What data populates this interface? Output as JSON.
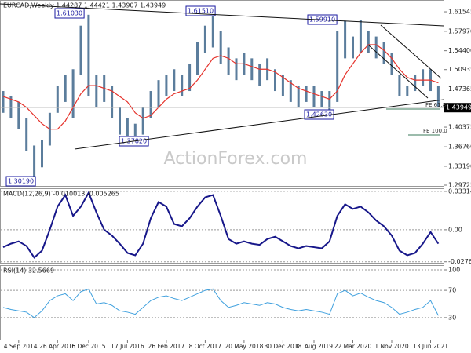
{
  "chart_data": [
    {
      "type": "ohlc",
      "title": "EURCAD,Weekly  1.44287 1.44421 1.43907 1.43949",
      "high": [
        1.47,
        1.46,
        1.45,
        1.42,
        1.37,
        1.38,
        1.43,
        1.48,
        1.5,
        1.51,
        1.59,
        1.61,
        1.5,
        1.5,
        1.48,
        1.44,
        1.42,
        1.41,
        1.44,
        1.47,
        1.49,
        1.5,
        1.51,
        1.5,
        1.52,
        1.56,
        1.59,
        1.6151,
        1.58,
        1.55,
        1.53,
        1.54,
        1.53,
        1.52,
        1.53,
        1.51,
        1.5,
        1.49,
        1.48,
        1.48,
        1.48,
        1.47,
        1.47,
        1.58,
        1.5991,
        1.57,
        1.6,
        1.58,
        1.57,
        1.56,
        1.54,
        1.5,
        1.48,
        1.5,
        1.51,
        1.51,
        1.48
      ],
      "low": [
        1.43,
        1.42,
        1.4,
        1.36,
        1.3019,
        1.33,
        1.37,
        1.43,
        1.45,
        1.42,
        1.5,
        1.46,
        1.44,
        1.45,
        1.42,
        1.39,
        1.38,
        1.3782,
        1.39,
        1.42,
        1.44,
        1.46,
        1.47,
        1.46,
        1.47,
        1.5,
        1.54,
        1.55,
        1.52,
        1.5,
        1.49,
        1.5,
        1.49,
        1.48,
        1.49,
        1.47,
        1.46,
        1.45,
        1.44,
        1.45,
        1.44,
        1.44,
        1.4263,
        1.45,
        1.53,
        1.53,
        1.54,
        1.54,
        1.53,
        1.52,
        1.5,
        1.46,
        1.46,
        1.47,
        1.48,
        1.47,
        1.43949
      ],
      "moving_average": [
        1.46,
        1.455,
        1.45,
        1.44,
        1.425,
        1.41,
        1.4,
        1.4,
        1.415,
        1.44,
        1.465,
        1.48,
        1.48,
        1.475,
        1.47,
        1.46,
        1.45,
        1.43,
        1.42,
        1.425,
        1.44,
        1.455,
        1.465,
        1.47,
        1.475,
        1.49,
        1.51,
        1.53,
        1.535,
        1.53,
        1.52,
        1.52,
        1.515,
        1.51,
        1.51,
        1.505,
        1.495,
        1.485,
        1.475,
        1.47,
        1.465,
        1.46,
        1.455,
        1.47,
        1.5,
        1.52,
        1.54,
        1.555,
        1.555,
        1.545,
        1.53,
        1.51,
        1.495,
        1.49,
        1.49,
        1.49,
        1.485
      ],
      "bar_color": "#5b7d9c",
      "ma_color": "#e5322b",
      "ylim": [
        1.2958,
        1.6371
      ],
      "yticks": [
        1.61545,
        {
          "value": 1.5797,
          "label": "1.57970"
        },
        {
          "value": 1.544,
          "label": "1.54400"
        },
        1.50935,
        1.47365,
        1.40375,
        {
          "value": 1.3676,
          "label": "1.36760"
        },
        {
          "value": 1.3319,
          "label": "1.33190"
        },
        1.29725
      ],
      "last_price": 1.43949,
      "annotations": [
        "1.61030",
        "1.61510",
        "1.59910",
        "1.30190",
        "1.37820",
        "1.42630",
        "FE 61.8",
        "FE 100.0"
      ],
      "watermark": "ActionForex.com"
    },
    {
      "type": "line",
      "title": "MACD(12,26,9) -0.010013 -0.005265",
      "values": [
        -0.015,
        -0.012,
        -0.01,
        -0.014,
        -0.024,
        -0.018,
        0.0,
        0.02,
        0.03,
        0.012,
        0.02,
        0.032,
        0.015,
        0.0,
        -0.005,
        -0.012,
        -0.02,
        -0.022,
        -0.012,
        0.01,
        0.024,
        0.02,
        0.005,
        0.003,
        0.01,
        0.02,
        0.028,
        0.03,
        0.012,
        -0.008,
        -0.012,
        -0.01,
        -0.012,
        -0.013,
        -0.008,
        -0.006,
        -0.01,
        -0.014,
        -0.016,
        -0.014,
        -0.015,
        -0.016,
        -0.01,
        0.012,
        0.022,
        0.018,
        0.02,
        0.015,
        0.008,
        0.003,
        -0.005,
        -0.018,
        -0.022,
        -0.02,
        -0.012,
        -0.002,
        -0.012
      ],
      "color": "#17178a",
      "ylim": [
        -0.0285,
        0.0358
      ],
      "yticks": [
        0.033145,
        {
          "value": 0,
          "label": "0.00"
        },
        -0.027648
      ]
    },
    {
      "type": "line",
      "title": "RSI(14) 32.5669",
      "values": [
        45,
        42,
        40,
        38,
        30,
        40,
        55,
        62,
        65,
        55,
        68,
        72,
        50,
        52,
        48,
        40,
        38,
        35,
        45,
        55,
        60,
        62,
        58,
        55,
        60,
        65,
        70,
        72,
        55,
        45,
        48,
        52,
        50,
        48,
        52,
        50,
        45,
        42,
        40,
        42,
        40,
        38,
        35,
        65,
        70,
        62,
        66,
        60,
        55,
        52,
        45,
        35,
        38,
        42,
        45,
        55,
        33
      ],
      "color": "#3fa0de",
      "ylim": [
        0,
        100
      ],
      "yticks": [
        100,
        70,
        30
      ],
      "categories": [
        null,
        null,
        "14 Sep 2014",
        null,
        null,
        null,
        null,
        "26 Apr 2015",
        null,
        null,
        null,
        "6 Dec 2015",
        null,
        null,
        null,
        null,
        "17 Jul 2016",
        null,
        null,
        null,
        null,
        "26 Feb 2017",
        null,
        null,
        null,
        null,
        "8 Oct 2017",
        null,
        null,
        null,
        null,
        "20 May 2018",
        null,
        null,
        null,
        null,
        "30 Dec 2018",
        null,
        null,
        null,
        "11 Aug 2019",
        null,
        null,
        null,
        null,
        "22 Mar 2020",
        null,
        null,
        null,
        null,
        "1 Nov 2020",
        null,
        null,
        null,
        null,
        "13 Jun 2021",
        null
      ]
    }
  ]
}
